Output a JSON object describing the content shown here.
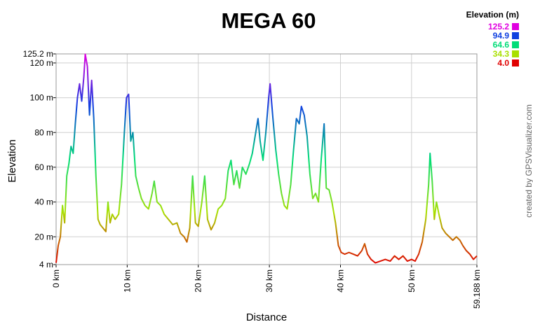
{
  "chart_data": {
    "type": "line",
    "title": "MEGA 60",
    "xlabel": "Distance",
    "ylabel": "Elevation",
    "credit": "created by GPSVisualizer.com",
    "legend_title": "Elevation (m)",
    "color_scale": [
      {
        "value": 125.2,
        "color": "#e000e0"
      },
      {
        "value": 94.9,
        "color": "#1040e0"
      },
      {
        "value": 64.6,
        "color": "#00dd77"
      },
      {
        "value": 34.3,
        "color": "#a8e000"
      },
      {
        "value": 4,
        "label": "4.0",
        "color": "#e00000"
      }
    ],
    "grid": true,
    "xlim": [
      0,
      59.188
    ],
    "ylim": [
      4,
      125.2
    ],
    "xticks": [
      {
        "value": 0,
        "label": "0 km"
      },
      {
        "value": 10,
        "label": "10 km"
      },
      {
        "value": 20,
        "label": "20 km"
      },
      {
        "value": 30,
        "label": "30 km"
      },
      {
        "value": 40,
        "label": "40 km"
      },
      {
        "value": 50,
        "label": "50 km"
      },
      {
        "value": 59.188,
        "label": "59.188 km"
      }
    ],
    "yticks": [
      {
        "value": 4,
        "label": "4 m"
      },
      {
        "value": 20,
        "label": "20 m"
      },
      {
        "value": 40,
        "label": "40 m"
      },
      {
        "value": 60,
        "label": "60 m"
      },
      {
        "value": 80,
        "label": "80 m"
      },
      {
        "value": 100,
        "label": "100 m"
      },
      {
        "value": 120,
        "label": "120 m"
      },
      {
        "value": 125.2,
        "label": "125.2 m"
      }
    ],
    "x": [
      0,
      0.3,
      0.6,
      0.9,
      1.2,
      1.5,
      1.8,
      2.1,
      2.4,
      2.7,
      3.0,
      3.3,
      3.6,
      3.9,
      4.1,
      4.4,
      4.7,
      5.0,
      5.3,
      5.6,
      5.9,
      6.2,
      6.6,
      7.0,
      7.3,
      7.6,
      7.9,
      8.3,
      8.8,
      9.2,
      9.6,
      9.9,
      10.2,
      10.5,
      10.8,
      11.2,
      11.6,
      12.0,
      12.5,
      13.0,
      13.5,
      13.8,
      14.2,
      14.7,
      15.2,
      15.8,
      16.4,
      17.0,
      17.5,
      18.0,
      18.4,
      18.8,
      19.2,
      19.6,
      20.0,
      20.5,
      20.9,
      21.3,
      21.8,
      22.3,
      22.8,
      23.3,
      23.8,
      24.2,
      24.6,
      25.0,
      25.4,
      25.8,
      26.2,
      26.7,
      27.2,
      27.6,
      28.0,
      28.4,
      28.7,
      29.1,
      29.5,
      29.9,
      30.1,
      30.5,
      30.9,
      31.3,
      31.7,
      32.1,
      32.5,
      33.0,
      33.4,
      33.8,
      34.2,
      34.5,
      34.9,
      35.3,
      35.7,
      36.1,
      36.5,
      36.9,
      37.3,
      37.7,
      38.0,
      38.4,
      38.8,
      39.3,
      39.7,
      40.1,
      40.6,
      41.2,
      41.8,
      42.4,
      43.0,
      43.4,
      43.8,
      44.3,
      44.9,
      45.6,
      46.3,
      47.0,
      47.6,
      48.2,
      48.8,
      49.4,
      50.0,
      50.5,
      51.0,
      51.5,
      52.0,
      52.4,
      52.6,
      52.9,
      53.2,
      53.5,
      53.9,
      54.3,
      54.8,
      55.3,
      55.8,
      56.3,
      56.8,
      57.2,
      57.7,
      58.2,
      58.7,
      59.188
    ],
    "values": [
      5,
      15,
      20,
      38,
      28,
      55,
      62,
      72,
      68,
      85,
      100,
      108,
      98,
      112,
      125,
      118,
      90,
      110,
      88,
      55,
      30,
      27,
      25,
      23,
      40,
      28,
      33,
      30,
      33,
      50,
      80,
      100,
      102,
      75,
      80,
      55,
      48,
      42,
      38,
      36,
      45,
      52,
      40,
      38,
      33,
      30,
      27,
      28,
      22,
      20,
      17,
      25,
      55,
      28,
      26,
      40,
      55,
      30,
      24,
      28,
      36,
      38,
      42,
      58,
      64,
      50,
      58,
      48,
      60,
      56,
      62,
      68,
      78,
      88,
      75,
      64,
      80,
      100,
      108,
      88,
      70,
      56,
      45,
      38,
      36,
      50,
      70,
      88,
      85,
      95,
      90,
      78,
      56,
      42,
      45,
      40,
      65,
      85,
      48,
      47,
      40,
      28,
      15,
      11,
      10,
      11,
      10,
      9,
      12,
      16,
      10,
      7,
      5,
      6,
      7,
      6,
      9,
      7,
      9,
      6,
      7,
      6,
      10,
      17,
      30,
      50,
      68,
      52,
      30,
      40,
      32,
      25,
      22,
      20,
      18,
      20,
      18,
      15,
      12,
      10,
      7,
      9
    ]
  }
}
